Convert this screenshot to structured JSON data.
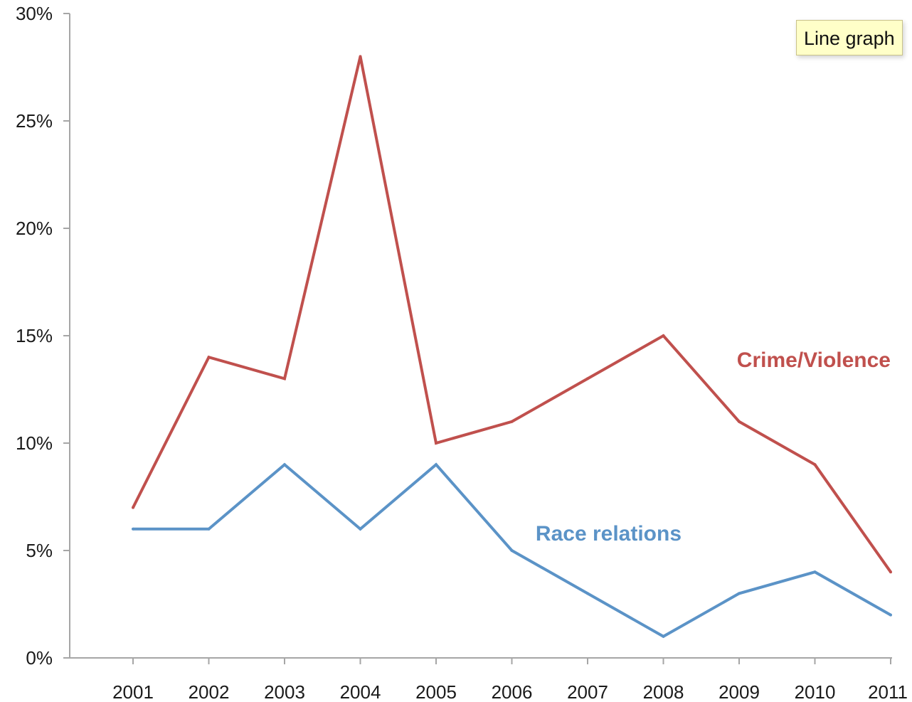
{
  "tooltip": {
    "text": "Line graph"
  },
  "chart_data": {
    "type": "line",
    "title": "",
    "xlabel": "",
    "ylabel": "",
    "categories": [
      "2001",
      "2002",
      "2003",
      "2004",
      "2005",
      "2006",
      "2007",
      "2008",
      "2009",
      "2010",
      "2011"
    ],
    "ylim": [
      0,
      30
    ],
    "yticks": [
      0,
      5,
      10,
      15,
      20,
      25,
      30
    ],
    "ytick_labels": [
      "0%",
      "5%",
      "10%",
      "15%",
      "20%",
      "25%",
      "30%"
    ],
    "grid": false,
    "series": [
      {
        "name": "Crime/Violence",
        "color": "#c0504d",
        "values": [
          7,
          14,
          13,
          28,
          10,
          11,
          13,
          15,
          11,
          9,
          4
        ]
      },
      {
        "name": "Race relations",
        "color": "#5b93c7",
        "values": [
          6,
          6,
          9,
          6,
          9,
          5,
          3,
          1,
          3,
          4,
          2
        ]
      }
    ],
    "axis_color": "#a6a6a6"
  }
}
